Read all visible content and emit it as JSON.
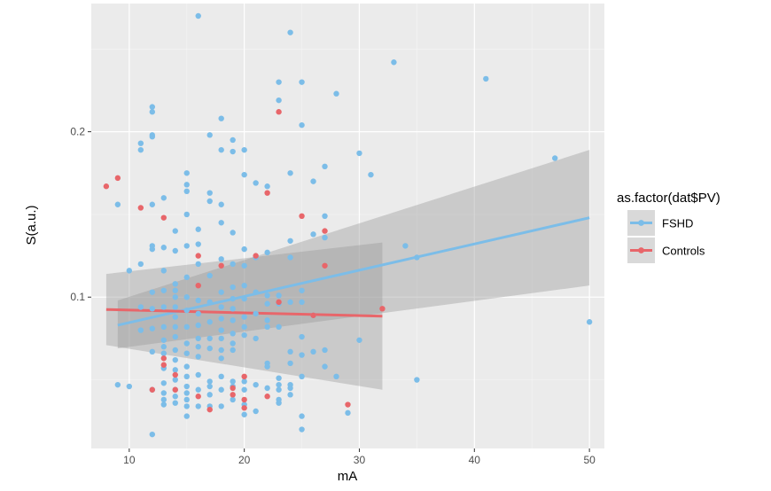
{
  "chart_data": {
    "type": "scatter",
    "xlabel": "mA",
    "ylabel": "S(a.u.)",
    "xlim": [
      6.7,
      51.3
    ],
    "ylim": [
      0.0085,
      0.2775
    ],
    "x_ticks": [
      10,
      20,
      30,
      40,
      50
    ],
    "x_tick_labels": [
      "10",
      "20",
      "30",
      "40",
      "50"
    ],
    "y_ticks": [
      0.1,
      0.2
    ],
    "y_tick_labels": [
      "0.1",
      "0.2"
    ],
    "grid": true,
    "legend": {
      "title": "as.factor(dat$PV)",
      "position": "right",
      "entries": [
        "FSHD",
        "Controls"
      ]
    },
    "series": [
      {
        "name": "FSHD",
        "color": "#7cbde8",
        "regression": {
          "x": [
            9,
            50
          ],
          "y": [
            0.083,
            0.148
          ],
          "ci_upper": [
            0.098,
            0.189
          ],
          "ci_lower": [
            0.069,
            0.107
          ]
        },
        "points": [
          [
            9,
            0.156
          ],
          [
            9,
            0.047
          ],
          [
            10,
            0.116
          ],
          [
            10,
            0.046
          ],
          [
            11,
            0.193
          ],
          [
            11,
            0.189
          ],
          [
            11,
            0.12
          ],
          [
            11,
            0.08
          ],
          [
            11,
            0.094
          ],
          [
            12,
            0.215
          ],
          [
            12,
            0.212
          ],
          [
            12,
            0.198
          ],
          [
            12,
            0.197
          ],
          [
            12,
            0.156
          ],
          [
            12,
            0.131
          ],
          [
            12,
            0.129
          ],
          [
            12,
            0.103
          ],
          [
            12,
            0.093
          ],
          [
            12,
            0.081
          ],
          [
            12,
            0.067
          ],
          [
            12,
            0.017
          ],
          [
            12,
            0.044
          ],
          [
            13,
            0.16
          ],
          [
            13,
            0.13
          ],
          [
            13,
            0.116
          ],
          [
            13,
            0.104
          ],
          [
            13,
            0.094
          ],
          [
            13,
            0.082
          ],
          [
            13,
            0.074
          ],
          [
            13,
            0.07
          ],
          [
            13,
            0.066
          ],
          [
            13,
            0.057
          ],
          [
            13,
            0.048
          ],
          [
            13,
            0.042
          ],
          [
            13,
            0.038
          ],
          [
            13,
            0.035
          ],
          [
            14,
            0.14
          ],
          [
            14,
            0.128
          ],
          [
            14,
            0.108
          ],
          [
            14,
            0.104
          ],
          [
            14,
            0.1
          ],
          [
            14,
            0.094
          ],
          [
            14,
            0.088
          ],
          [
            14,
            0.082
          ],
          [
            14,
            0.076
          ],
          [
            14,
            0.068
          ],
          [
            14,
            0.062
          ],
          [
            14,
            0.056
          ],
          [
            14,
            0.05
          ],
          [
            14,
            0.044
          ],
          [
            14,
            0.04
          ],
          [
            14,
            0.036
          ],
          [
            15,
            0.175
          ],
          [
            15,
            0.168
          ],
          [
            15,
            0.164
          ],
          [
            15,
            0.15
          ],
          [
            15,
            0.131
          ],
          [
            15,
            0.112
          ],
          [
            15,
            0.1
          ],
          [
            15,
            0.092
          ],
          [
            15,
            0.082
          ],
          [
            15,
            0.072
          ],
          [
            15,
            0.066
          ],
          [
            15,
            0.058
          ],
          [
            15,
            0.052
          ],
          [
            15,
            0.046
          ],
          [
            15,
            0.042
          ],
          [
            15,
            0.038
          ],
          [
            15,
            0.034
          ],
          [
            15,
            0.028
          ],
          [
            16,
            0.27
          ],
          [
            16,
            0.141
          ],
          [
            16,
            0.132
          ],
          [
            16,
            0.12
          ],
          [
            16,
            0.098
          ],
          [
            16,
            0.09
          ],
          [
            16,
            0.083
          ],
          [
            16,
            0.075
          ],
          [
            16,
            0.07
          ],
          [
            16,
            0.064
          ],
          [
            16,
            0.053
          ],
          [
            16,
            0.044
          ],
          [
            16,
            0.034
          ],
          [
            17,
            0.198
          ],
          [
            17,
            0.163
          ],
          [
            17,
            0.158
          ],
          [
            17,
            0.113
          ],
          [
            17,
            0.097
          ],
          [
            17,
            0.085
          ],
          [
            17,
            0.075
          ],
          [
            17,
            0.069
          ],
          [
            17,
            0.049
          ],
          [
            17,
            0.046
          ],
          [
            17,
            0.041
          ],
          [
            17,
            0.034
          ],
          [
            18,
            0.208
          ],
          [
            18,
            0.189
          ],
          [
            18,
            0.156
          ],
          [
            18,
            0.145
          ],
          [
            18,
            0.123
          ],
          [
            18,
            0.103
          ],
          [
            18,
            0.094
          ],
          [
            18,
            0.087
          ],
          [
            18,
            0.08
          ],
          [
            18,
            0.075
          ],
          [
            18,
            0.068
          ],
          [
            18,
            0.063
          ],
          [
            18,
            0.052
          ],
          [
            18,
            0.044
          ],
          [
            18,
            0.034
          ],
          [
            19,
            0.195
          ],
          [
            19,
            0.188
          ],
          [
            19,
            0.139
          ],
          [
            19,
            0.12
          ],
          [
            19,
            0.106
          ],
          [
            19,
            0.099
          ],
          [
            19,
            0.093
          ],
          [
            19,
            0.086
          ],
          [
            19,
            0.078
          ],
          [
            19,
            0.072
          ],
          [
            19,
            0.068
          ],
          [
            19,
            0.049
          ],
          [
            19,
            0.046
          ],
          [
            19,
            0.038
          ],
          [
            20,
            0.189
          ],
          [
            20,
            0.174
          ],
          [
            20,
            0.129
          ],
          [
            20,
            0.119
          ],
          [
            20,
            0.107
          ],
          [
            20,
            0.099
          ],
          [
            20,
            0.088
          ],
          [
            20,
            0.082
          ],
          [
            20,
            0.077
          ],
          [
            20,
            0.049
          ],
          [
            20,
            0.044
          ],
          [
            20,
            0.035
          ],
          [
            20,
            0.029
          ],
          [
            21,
            0.169
          ],
          [
            21,
            0.124
          ],
          [
            21,
            0.103
          ],
          [
            21,
            0.09
          ],
          [
            21,
            0.075
          ],
          [
            21,
            0.047
          ],
          [
            21,
            0.031
          ],
          [
            22,
            0.167
          ],
          [
            22,
            0.127
          ],
          [
            22,
            0.101
          ],
          [
            22,
            0.096
          ],
          [
            22,
            0.086
          ],
          [
            22,
            0.082
          ],
          [
            22,
            0.06
          ],
          [
            22,
            0.058
          ],
          [
            22,
            0.045
          ],
          [
            23,
            0.23
          ],
          [
            23,
            0.219
          ],
          [
            23,
            0.101
          ],
          [
            23,
            0.096
          ],
          [
            23,
            0.082
          ],
          [
            23,
            0.051
          ],
          [
            23,
            0.047
          ],
          [
            23,
            0.044
          ],
          [
            23,
            0.038
          ],
          [
            23,
            0.036
          ],
          [
            24,
            0.26
          ],
          [
            24,
            0.175
          ],
          [
            24,
            0.134
          ],
          [
            24,
            0.124
          ],
          [
            24,
            0.097
          ],
          [
            24,
            0.067
          ],
          [
            24,
            0.06
          ],
          [
            24,
            0.047
          ],
          [
            24,
            0.045
          ],
          [
            24,
            0.041
          ],
          [
            25,
            0.23
          ],
          [
            25,
            0.204
          ],
          [
            25,
            0.104
          ],
          [
            25,
            0.097
          ],
          [
            25,
            0.076
          ],
          [
            25,
            0.065
          ],
          [
            25,
            0.052
          ],
          [
            25,
            0.028
          ],
          [
            25,
            0.02
          ],
          [
            26,
            0.17
          ],
          [
            26,
            0.138
          ],
          [
            26,
            0.089
          ],
          [
            26,
            0.067
          ],
          [
            27,
            0.179
          ],
          [
            27,
            0.149
          ],
          [
            27,
            0.136
          ],
          [
            27,
            0.068
          ],
          [
            27,
            0.058
          ],
          [
            28,
            0.223
          ],
          [
            28,
            0.052
          ],
          [
            29,
            0.03
          ],
          [
            30,
            0.187
          ],
          [
            30,
            0.074
          ],
          [
            31,
            0.174
          ],
          [
            33,
            0.242
          ],
          [
            34,
            0.131
          ],
          [
            35,
            0.124
          ],
          [
            35,
            0.05
          ],
          [
            41,
            0.232
          ],
          [
            47,
            0.184
          ],
          [
            50,
            0.085
          ]
        ]
      },
      {
        "name": "Controls",
        "color": "#e8666a",
        "regression": {
          "x": [
            8,
            32
          ],
          "y": [
            0.0925,
            0.0885
          ],
          "ci_upper": [
            0.114,
            0.133
          ],
          "ci_lower": [
            0.071,
            0.044
          ]
        },
        "points": [
          [
            8,
            0.167
          ],
          [
            9,
            0.172
          ],
          [
            11,
            0.154
          ],
          [
            12,
            0.044
          ],
          [
            13,
            0.148
          ],
          [
            13,
            0.063
          ],
          [
            13,
            0.059
          ],
          [
            14,
            0.053
          ],
          [
            14,
            0.044
          ],
          [
            16,
            0.125
          ],
          [
            16,
            0.107
          ],
          [
            16,
            0.04
          ],
          [
            17,
            0.032
          ],
          [
            18,
            0.119
          ],
          [
            19,
            0.045
          ],
          [
            19,
            0.041
          ],
          [
            20,
            0.052
          ],
          [
            20,
            0.038
          ],
          [
            20,
            0.033
          ],
          [
            21,
            0.125
          ],
          [
            22,
            0.163
          ],
          [
            22,
            0.04
          ],
          [
            23,
            0.212
          ],
          [
            23,
            0.097
          ],
          [
            25,
            0.149
          ],
          [
            26,
            0.089
          ],
          [
            27,
            0.14
          ],
          [
            27,
            0.119
          ],
          [
            29,
            0.035
          ],
          [
            32,
            0.093
          ]
        ]
      }
    ]
  }
}
